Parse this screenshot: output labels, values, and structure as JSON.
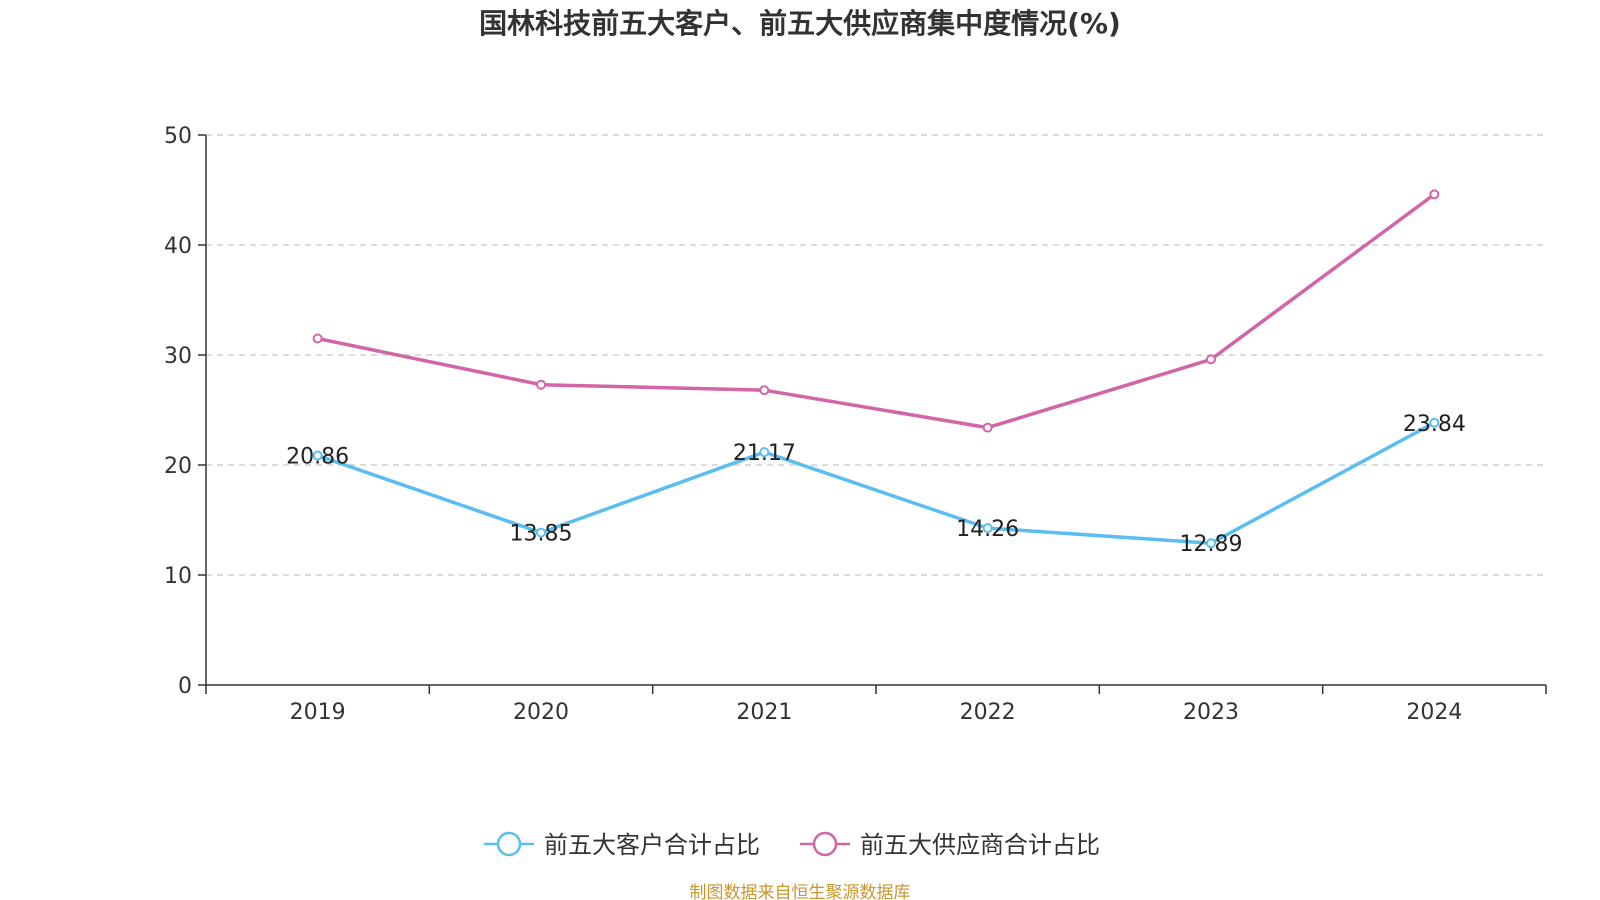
{
  "chart_data": {
    "type": "line",
    "title": "国林科技前五大客户、前五大供应商集中度情况(%)",
    "xlabel": "",
    "ylabel": "",
    "categories": [
      "2019",
      "2020",
      "2021",
      "2022",
      "2023",
      "2024"
    ],
    "ylim": [
      0,
      50
    ],
    "yticks": [
      0,
      10,
      20,
      30,
      40,
      50
    ],
    "grid": true,
    "legend_position": "bottom",
    "series": [
      {
        "name": "前五大客户合计占比",
        "color": "#5bbdf0",
        "values": [
          20.86,
          13.85,
          21.17,
          14.26,
          12.89,
          23.84
        ],
        "labels": [
          "20.86",
          "13.85",
          "21.17",
          "14.26",
          "12.89",
          "23.84"
        ],
        "show_labels": true
      },
      {
        "name": "前五大供应商合计占比",
        "color": "#d264a8",
        "values": [
          31.5,
          27.3,
          26.8,
          23.4,
          29.6,
          44.6
        ],
        "show_labels": false
      }
    ],
    "source": "制图数据来自恒生聚源数据库"
  }
}
